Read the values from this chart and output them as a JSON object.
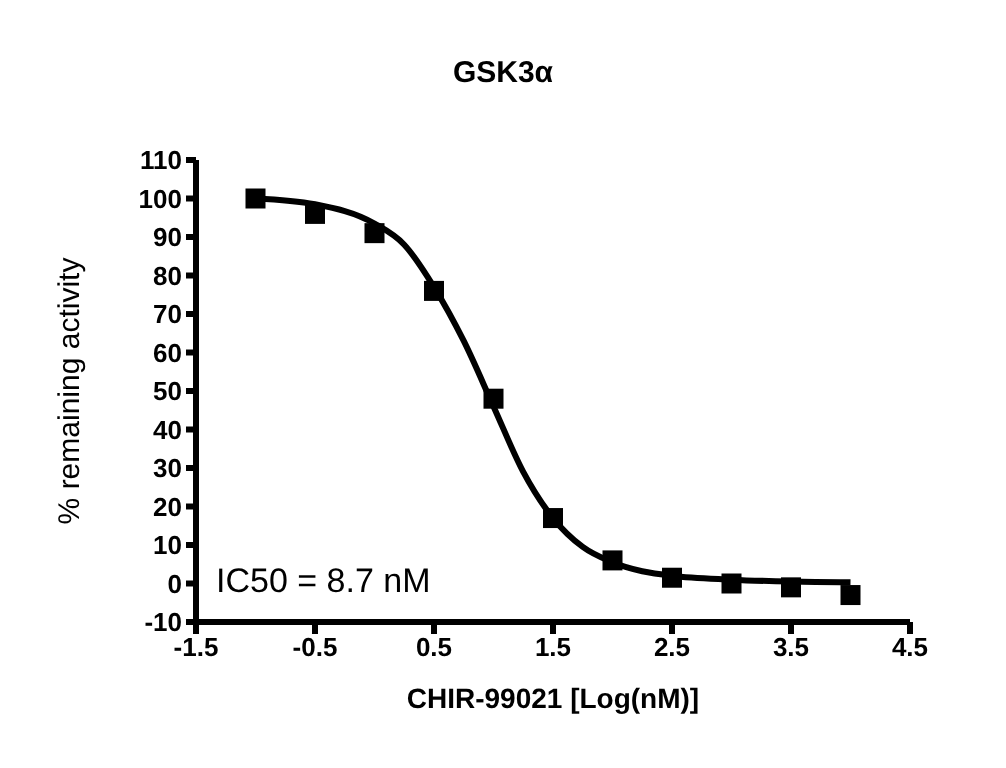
{
  "chart_data": {
    "type": "scatter",
    "title": "GSK3α",
    "xlabel": "CHIR-99021 [Log(nM)]",
    "ylabel": "% remaining activity",
    "annotations": [
      "IC50 = 8.7 nM"
    ],
    "marker": "square",
    "xlim": [
      -1.5,
      4.5
    ],
    "xticks": [
      -1.5,
      -0.5,
      0.5,
      1.5,
      2.5,
      3.5,
      4.5
    ],
    "ylim": [
      -10,
      110
    ],
    "yticks": [
      -10,
      0,
      10,
      20,
      30,
      40,
      50,
      60,
      70,
      80,
      90,
      100,
      110
    ],
    "series": [
      {
        "color": "#000000",
        "x": [
          -1,
          -0.5,
          0,
          0.5,
          1,
          1.5,
          2,
          2.5,
          3,
          3.5,
          4
        ],
        "values": [
          100,
          96,
          91,
          76,
          48,
          17,
          6,
          1.5,
          0,
          -1,
          -3
        ]
      },
      {
        "type": "line",
        "color": "#000000",
        "line_style": "solid",
        "marker": "none",
        "x": [
          -1,
          -0.5,
          0,
          0.25,
          0.5,
          0.75,
          1,
          1.25,
          1.5,
          1.75,
          2,
          2.5,
          3,
          3.5,
          4
        ],
        "values": [
          100,
          98.5,
          93.5,
          88,
          77,
          63,
          46,
          29,
          17,
          9.5,
          5.5,
          2,
          1,
          0.5,
          0.3
        ]
      }
    ]
  }
}
